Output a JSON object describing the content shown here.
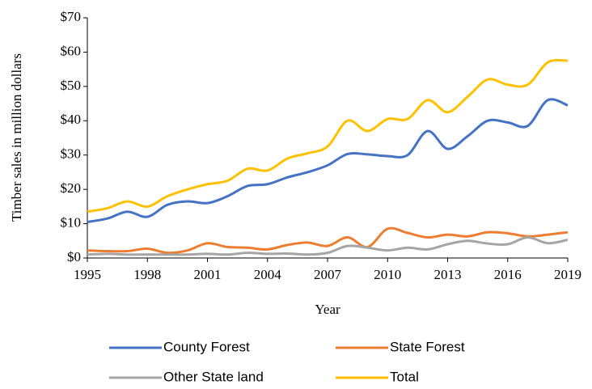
{
  "chart_data": {
    "type": "line",
    "y_label": "Timber sales in million dollars",
    "x_label": "Year",
    "x": [
      1995,
      1996,
      1997,
      1998,
      1999,
      2000,
      2001,
      2002,
      2003,
      2004,
      2005,
      2006,
      2007,
      2008,
      2009,
      2010,
      2011,
      2012,
      2013,
      2014,
      2015,
      2016,
      2017,
      2018,
      2019
    ],
    "series": [
      {
        "name": "County Forest",
        "color": "#4472c4",
        "values": [
          10.5,
          11.5,
          13.5,
          12,
          15.5,
          16.5,
          16,
          18,
          21,
          21.5,
          23.5,
          25,
          27,
          30.3,
          30.2,
          29.7,
          30,
          37,
          31.8,
          35.5,
          40,
          39.5,
          38.5,
          46,
          44.5
        ]
      },
      {
        "name": "State Forest",
        "color": "#ed7d31",
        "values": [
          2.2,
          2,
          2,
          2.7,
          1.5,
          2.2,
          4.3,
          3.2,
          3,
          2.5,
          3.8,
          4.5,
          3.5,
          6,
          3.2,
          8.5,
          7.3,
          6,
          6.8,
          6.3,
          7.5,
          7.2,
          6.3,
          6.8,
          7.5
        ]
      },
      {
        "name": "Other State land",
        "color": "#a5a5a5",
        "values": [
          1,
          1.2,
          1,
          1,
          1,
          1,
          1.2,
          1,
          1.5,
          1.2,
          1.3,
          1,
          1.5,
          3.5,
          3,
          2.2,
          3,
          2.5,
          4,
          5,
          4.2,
          4,
          6,
          4.3,
          5.3
        ]
      },
      {
        "name": "Total",
        "color": "#ffc000",
        "values": [
          13.5,
          14.5,
          16.5,
          15,
          18,
          20,
          21.5,
          22.5,
          26,
          25.5,
          29,
          30.5,
          32.5,
          40,
          37,
          40.5,
          40.5,
          46,
          42.5,
          47,
          52,
          50.5,
          50.5,
          57,
          57.5
        ]
      }
    ],
    "xlim": [
      1995,
      2019
    ],
    "xticks": [
      1995,
      1998,
      2001,
      2004,
      2007,
      2010,
      2013,
      2016,
      2019
    ],
    "ylim": [
      0,
      70
    ],
    "yticks": [
      {
        "value": 0,
        "label": "$0"
      },
      {
        "value": 10,
        "label": "$10"
      },
      {
        "value": 20,
        "label": "$20"
      },
      {
        "value": 30,
        "label": "$30"
      },
      {
        "value": 40,
        "label": "$40"
      },
      {
        "value": 50,
        "label": "$50"
      },
      {
        "value": 60,
        "label": "$60"
      },
      {
        "value": 70,
        "label": "$70"
      }
    ],
    "grid": false,
    "legend": "bottom"
  }
}
